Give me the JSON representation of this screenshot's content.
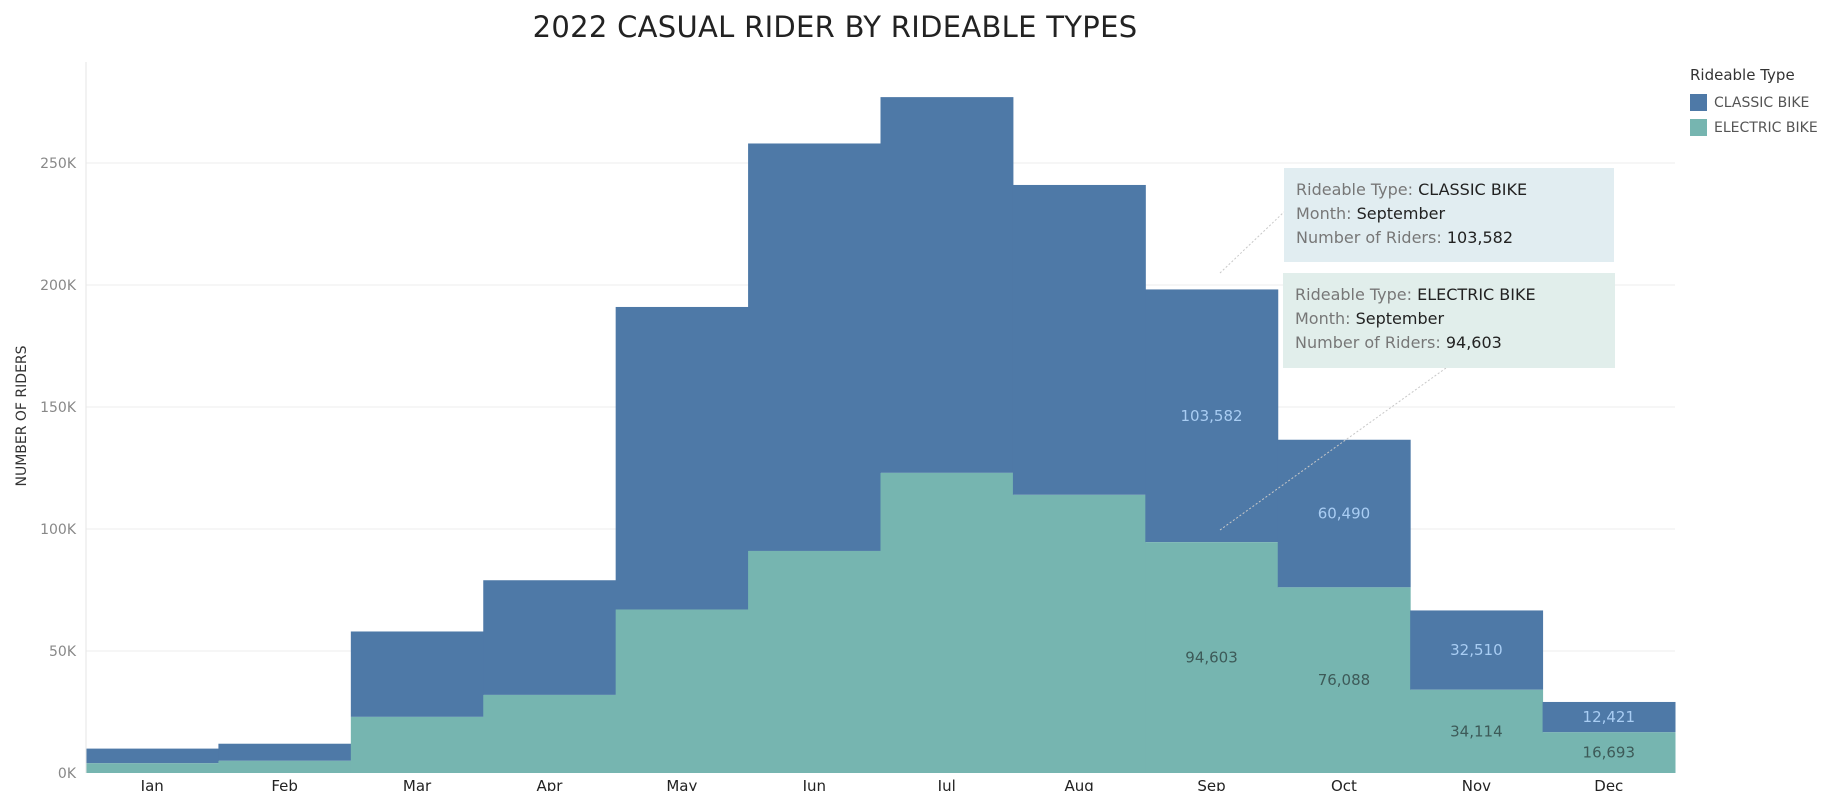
{
  "colors": {
    "classic": "#4e79a7",
    "electric": "#76b5b0",
    "classic_label": "#a9cdf3",
    "electric_label": "#3d5a58"
  },
  "legend": {
    "title": "Rideable Type",
    "items": [
      {
        "label": "CLASSIC BIKE",
        "color": "#4e79a7"
      },
      {
        "label": "ELECTRIC BIKE",
        "color": "#76b5b0"
      }
    ]
  },
  "tooltips": {
    "classic": {
      "type_key": "Rideable Type: ",
      "type_val": "CLASSIC BIKE",
      "month_key": "Month: ",
      "month_val": "September",
      "riders_key": "Number of Riders: ",
      "riders_val": "103,582"
    },
    "electric": {
      "type_key": "Rideable Type: ",
      "type_val": "ELECTRIC BIKE",
      "month_key": "Month: ",
      "month_val": "September",
      "riders_key": "Number of Riders: ",
      "riders_val": "94,603"
    }
  },
  "chart_data": {
    "type": "bar",
    "stacked": true,
    "title": "2022 CASUAL RIDER BY RIDEABLE TYPES",
    "xlabel": "",
    "ylabel": "NUMBER OF RIDERS",
    "ylim": [
      0,
      280000
    ],
    "yticks": [
      0,
      50000,
      100000,
      150000,
      200000,
      250000
    ],
    "ytick_labels": [
      "0K",
      "50K",
      "100K",
      "150K",
      "200K",
      "250K"
    ],
    "grid": true,
    "legend_position": "top-right",
    "categories": [
      "Jan",
      "Feb",
      "Mar",
      "Apr",
      "May",
      "Jun",
      "Jul",
      "Aug",
      "Sep",
      "Oct",
      "Nov",
      "Dec"
    ],
    "series": [
      {
        "name": "ELECTRIC BIKE",
        "values": [
          4000,
          5000,
          23000,
          32000,
          67000,
          91000,
          123000,
          114000,
          94603,
          76088,
          34114,
          16693
        ]
      },
      {
        "name": "CLASSIC BIKE",
        "values": [
          6000,
          7000,
          35000,
          47000,
          124000,
          167000,
          154000,
          127000,
          103582,
          60490,
          32510,
          12421
        ]
      }
    ],
    "data_labels": {
      "ELECTRIC BIKE": {
        "Sep": "94,603",
        "Oct": "76,088",
        "Nov": "34,114",
        "Dec": "16,693"
      },
      "CLASSIC BIKE": {
        "Sep": "103,582",
        "Oct": "60,490",
        "Nov": "32,510",
        "Dec": "12,421"
      }
    }
  }
}
